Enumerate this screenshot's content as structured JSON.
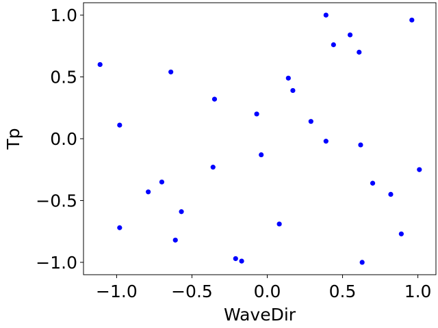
{
  "chart_data": {
    "type": "scatter",
    "title": "",
    "xlabel": "WaveDir",
    "ylabel": "Tp",
    "xlim": [
      -1.22,
      1.12
    ],
    "ylim": [
      -1.1,
      1.1
    ],
    "xticks": [
      -1.0,
      -0.5,
      0.0,
      0.5,
      1.0
    ],
    "xtick_labels": [
      "−1.0",
      "−0.5",
      "0.0",
      "0.5",
      "1.0"
    ],
    "yticks": [
      -1.0,
      -0.5,
      0.0,
      0.5,
      1.0
    ],
    "ytick_labels": [
      "−1.0",
      "−0.5",
      "0.0",
      "0.5",
      "1.0"
    ],
    "grid": false,
    "legend": null,
    "colors": {
      "marker": "#0000ff",
      "axes": "#000000",
      "background": "#ffffff"
    },
    "series": [
      {
        "points": [
          {
            "x": -1.11,
            "y": 0.6
          },
          {
            "x": -0.98,
            "y": 0.11
          },
          {
            "x": -0.98,
            "y": -0.72
          },
          {
            "x": -0.79,
            "y": -0.43
          },
          {
            "x": -0.7,
            "y": -0.35
          },
          {
            "x": -0.64,
            "y": 0.54
          },
          {
            "x": -0.61,
            "y": -0.82
          },
          {
            "x": -0.57,
            "y": -0.59
          },
          {
            "x": -0.35,
            "y": 0.32
          },
          {
            "x": -0.36,
            "y": -0.23
          },
          {
            "x": -0.21,
            "y": -0.97
          },
          {
            "x": -0.17,
            "y": -0.99
          },
          {
            "x": -0.07,
            "y": 0.2
          },
          {
            "x": -0.04,
            "y": -0.13
          },
          {
            "x": 0.08,
            "y": -0.69
          },
          {
            "x": 0.14,
            "y": 0.49
          },
          {
            "x": 0.17,
            "y": 0.39
          },
          {
            "x": 0.29,
            "y": 0.14
          },
          {
            "x": 0.39,
            "y": 1.0
          },
          {
            "x": 0.39,
            "y": -0.02
          },
          {
            "x": 0.44,
            "y": 0.76
          },
          {
            "x": 0.55,
            "y": 0.84
          },
          {
            "x": 0.61,
            "y": 0.7
          },
          {
            "x": 0.62,
            "y": -0.05
          },
          {
            "x": 0.63,
            "y": -1.0
          },
          {
            "x": 0.7,
            "y": -0.36
          },
          {
            "x": 0.82,
            "y": -0.45
          },
          {
            "x": 0.89,
            "y": -0.77
          },
          {
            "x": 0.96,
            "y": 0.96
          },
          {
            "x": 1.01,
            "y": -0.25
          }
        ]
      }
    ]
  }
}
